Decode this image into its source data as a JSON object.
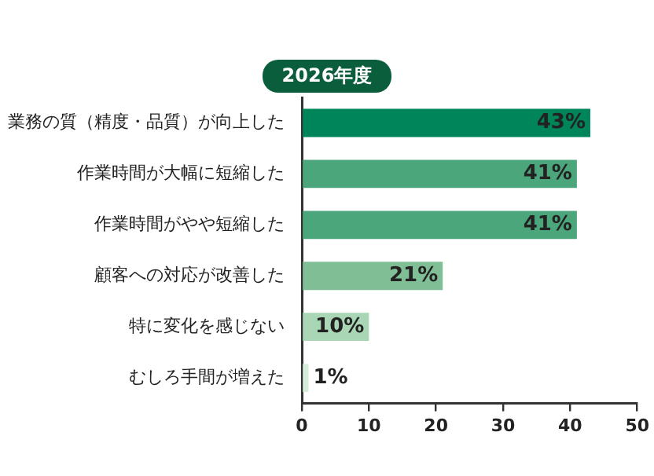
{
  "chart_data": {
    "type": "bar",
    "orientation": "horizontal",
    "title": "2026年度",
    "categories": [
      "業務の質（精度・品質）が向上した",
      "作業時間が大幅に短縮した",
      "作業時間がやや短縮した",
      "顧客への対応が改善した",
      "特に変化を感じない",
      "むしろ手間が増えた"
    ],
    "values": [
      43,
      41,
      41,
      21,
      10,
      1
    ],
    "colors": [
      "#00855a",
      "#4ba67b",
      "#4ba67b",
      "#80bf95",
      "#a9d6b4",
      "#d6ecda"
    ],
    "value_labels": [
      "43%",
      "41%",
      "41%",
      "21%",
      "10%",
      "1%"
    ],
    "xlim": [
      0,
      50
    ],
    "xticks": [
      0,
      10,
      20,
      30,
      40,
      50
    ],
    "grid": false,
    "legend": false
  }
}
